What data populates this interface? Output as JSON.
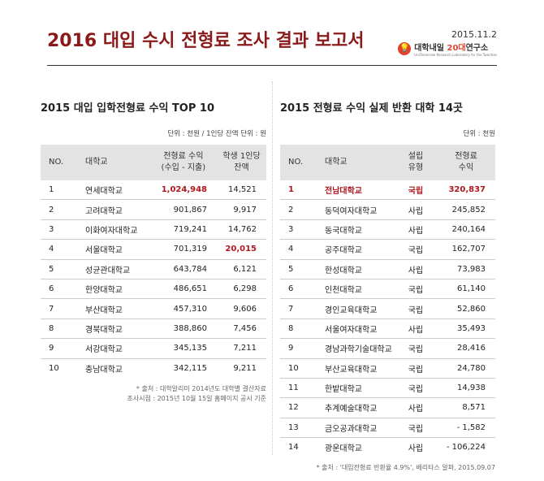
{
  "header": {
    "title": "2016 대입 수시 전형료 조사 결과 보고서",
    "date": "2015.11.2",
    "logo": {
      "prefix": "대학내일 ",
      "accent": "20대",
      "suffix": "연구소",
      "subtitle": "UniTomorrow Research Laboratory for the Twenties"
    }
  },
  "left": {
    "title": "2015 대입 입학전형료 수익 TOP 10",
    "unit": "단위 : 천원 / 1인당 잔액 단위 : 원",
    "headers": [
      "NO.",
      "대학교",
      "전형료 수익",
      "(수입 - 지출)",
      "학생 1인당",
      "잔액"
    ],
    "rows": [
      [
        "1",
        "연세대학교",
        "1,024,948",
        "14,521"
      ],
      [
        "2",
        "고려대학교",
        "901,867",
        "9,917"
      ],
      [
        "3",
        "이화여자대학교",
        "719,241",
        "14,762"
      ],
      [
        "4",
        "서울대학교",
        "701,319",
        "20,015"
      ],
      [
        "5",
        "성균관대학교",
        "643,784",
        "6,121"
      ],
      [
        "6",
        "한양대학교",
        "486,651",
        "6,298"
      ],
      [
        "7",
        "부산대학교",
        "457,310",
        "9,606"
      ],
      [
        "8",
        "경북대학교",
        "388,860",
        "7,456"
      ],
      [
        "9",
        "서강대학교",
        "345,135",
        "7,211"
      ],
      [
        "10",
        "충남대학교",
        "342,115",
        "9,211"
      ]
    ],
    "note1": "* 출처 : 대학알리미 2014년도 대학별 결산자료",
    "note2": "조사시점 : 2015년 10월 15일 홈페이지 공시 기준"
  },
  "right": {
    "title": "2015 전형료 수익 실제 반환 대학 14곳",
    "unit": "단위 : 천원",
    "headers": [
      "NO.",
      "대학교",
      "설립",
      "유형",
      "전형료",
      "수익"
    ],
    "rows": [
      [
        "1",
        "전남대학교",
        "국립",
        "320,837"
      ],
      [
        "2",
        "동덕여자대학교",
        "사립",
        "245,852"
      ],
      [
        "3",
        "동국대학교",
        "사립",
        "240,164"
      ],
      [
        "4",
        "공주대학교",
        "국립",
        "162,707"
      ],
      [
        "5",
        "한성대학교",
        "사립",
        "73,983"
      ],
      [
        "6",
        "인천대학교",
        "국립",
        "61,140"
      ],
      [
        "7",
        "경인교육대학교",
        "국립",
        "52,860"
      ],
      [
        "8",
        "서울여자대학교",
        "사립",
        "35,493"
      ],
      [
        "9",
        "경남과학기술대학교",
        "국립",
        "28,416"
      ],
      [
        "10",
        "부산교육대학교",
        "국립",
        "24,780"
      ],
      [
        "11",
        "한밭대학교",
        "국립",
        "14,938"
      ],
      [
        "12",
        "추계예술대학교",
        "사립",
        "8,571"
      ],
      [
        "13",
        "금오공과대학교",
        "국립",
        "- 1,582"
      ],
      [
        "14",
        "광운대학교",
        "사립",
        "- 106,224"
      ]
    ],
    "note": "* 출처 : '대입전형료 반환율 4.9%', 베리타스 알파, 2015.09.07"
  },
  "colors": {
    "title": "#8b1a1a",
    "highlight": "#b0171f",
    "header_bg": "#e3e3e3"
  }
}
